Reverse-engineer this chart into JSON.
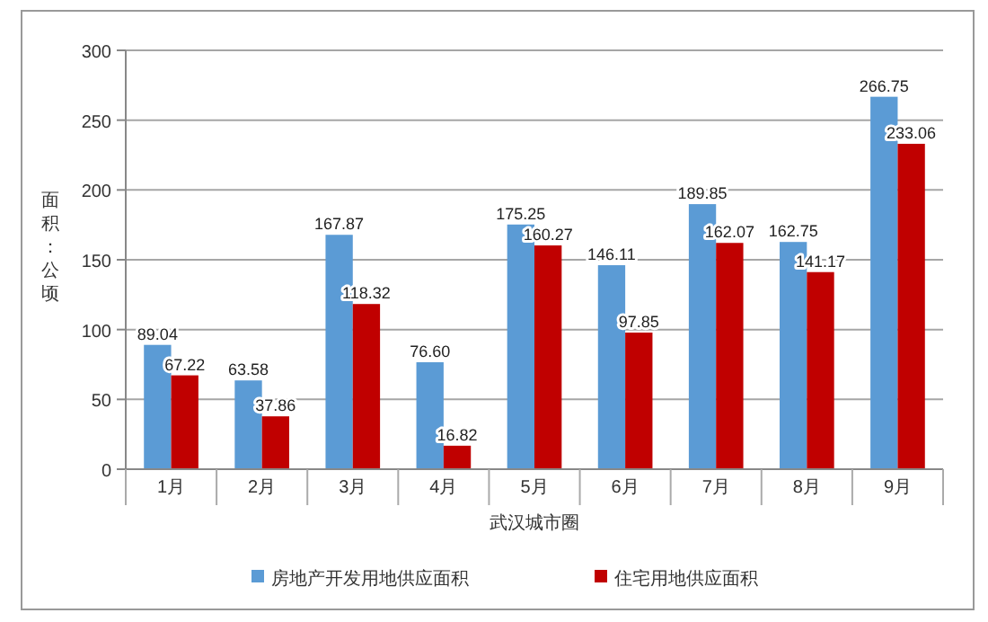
{
  "chart_data": {
    "type": "bar",
    "xlabel": "武汉城市圈",
    "ylabel": "面积：公顷",
    "categories": [
      "1月",
      "2月",
      "3月",
      "4月",
      "5月",
      "6月",
      "7月",
      "8月",
      "9月"
    ],
    "series": [
      {
        "name": "房地产开发用地供应面积",
        "color": "#5b9bd5",
        "values": [
          89.04,
          63.58,
          167.87,
          76.6,
          175.25,
          146.11,
          189.85,
          162.75,
          266.75
        ],
        "value_labels": [
          "89.04",
          "63.58",
          "167.87",
          "76.60",
          "175.25",
          "146.11",
          "189.85",
          "162.75",
          "266.75"
        ]
      },
      {
        "name": "住宅用地供应面积",
        "color": "#c00000",
        "values": [
          67.22,
          37.86,
          118.32,
          16.82,
          160.27,
          97.85,
          162.07,
          141.17,
          233.06
        ],
        "value_labels": [
          "67.22",
          "37.86",
          "118.32",
          "16.82",
          "160.27",
          "97.85",
          "162.07",
          "141.17",
          "233.06"
        ]
      }
    ],
    "ylim": [
      0,
      300
    ],
    "yticks": [
      0,
      50,
      100,
      150,
      200,
      250,
      300
    ],
    "grid": "y",
    "legend": "bottom"
  }
}
